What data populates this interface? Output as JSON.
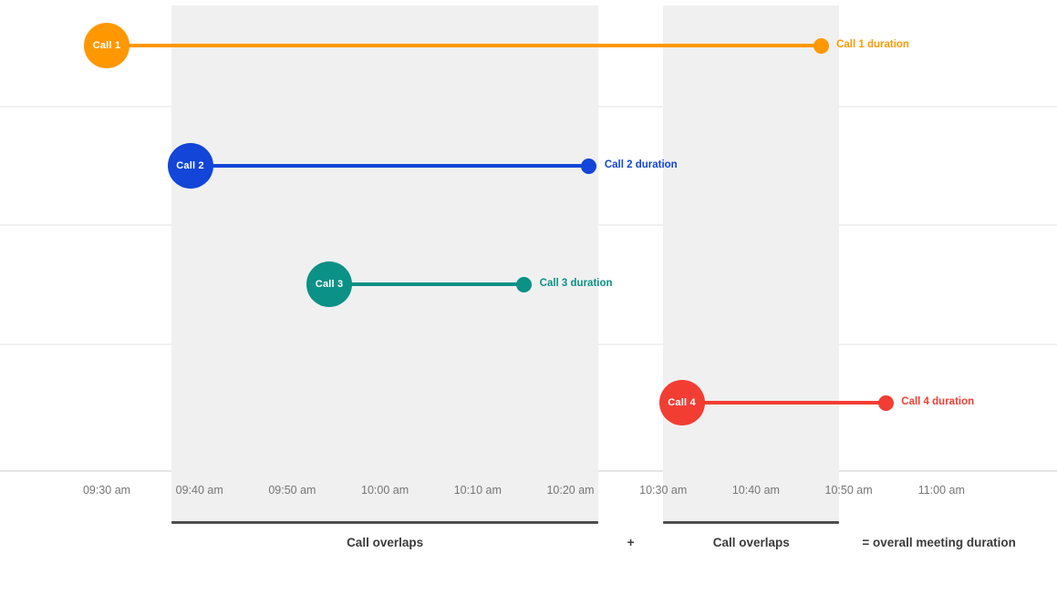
{
  "colors": {
    "band": "#F0F0F0",
    "gridline": "#F1F1F1",
    "axis_line": "#E4E4E4",
    "axis_text": "#757575",
    "footer_text": "#3B3B3B",
    "bracket_bar": "#4D4D4D",
    "bubble_text": "#FFFFFF"
  },
  "chart_data": {
    "type": "bar",
    "subtype": "horizontal-timeline-gantt",
    "title": "",
    "x_axis": {
      "tick_labels": [
        "09:30 am",
        "09:40 am",
        "09:50 am",
        "10:00 am",
        "10:10 am",
        "10:20 am",
        "10:30 am",
        "10:40 am",
        "10:50 am",
        "11:00 am"
      ],
      "start_time": "09:30",
      "end_time": "11:00",
      "tick_interval_minutes": 10,
      "grid": true
    },
    "calls": [
      {
        "name": "Call 1",
        "start": "09:30",
        "end": "10:47",
        "color": "#FF9800",
        "end_label": "Call 1 duration"
      },
      {
        "name": "Call 2",
        "start": "09:39",
        "end": "10:22",
        "color": "#1245D8",
        "end_label": "Call 2 duration"
      },
      {
        "name": "Call 3",
        "start": "09:54",
        "end": "10:15",
        "color": "#0B9186",
        "end_label": "Call 3 duration"
      },
      {
        "name": "Call 4",
        "start": "10:32",
        "end": "10:54",
        "color": "#F23D33",
        "end_label": "Call 4 duration"
      }
    ],
    "overlap_bands": [
      {
        "start": "09:37",
        "end": "10:23",
        "label": "Call overlaps"
      },
      {
        "start": "10:30",
        "end": "10:49",
        "label": "Call overlaps"
      }
    ],
    "footer": {
      "plus": "+",
      "equals_label": "= overall meeting duration"
    }
  }
}
